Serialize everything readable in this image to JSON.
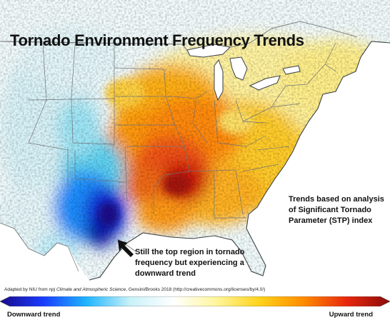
{
  "title": "Tornado Environment Frequency Trends",
  "annotations": {
    "right_note": [
      "Trends based on analysis",
      "of Significant Tornado",
      "Parameter (STP) index"
    ],
    "bottom_note": [
      "Still the top region in tornado",
      "frequency but experiencing a",
      "downward trend"
    ]
  },
  "credit": {
    "prefix": "Adapted by NIU from ",
    "journal": "npj Climate and Atmospheric Science",
    "suffix": ", Gensini/Brooks 2018 (http://creativecommons.org/licenses/by/4.0/)"
  },
  "legend": {
    "low_label": "Downward trend",
    "high_label": "Upward trend",
    "gradient_colors": [
      "#1a0a8a",
      "#1a3cff",
      "#1fb6ff",
      "#c8f1f8",
      "#ffffff",
      "#fff59a",
      "#ffd21a",
      "#ff8c00",
      "#e8280e",
      "#8a0b0b"
    ]
  },
  "map_colors": {
    "water": "#ffffff",
    "land_neutral": "#f2fbfc",
    "state_lines": "#6f7478",
    "coast_lines": "#3c4043"
  }
}
